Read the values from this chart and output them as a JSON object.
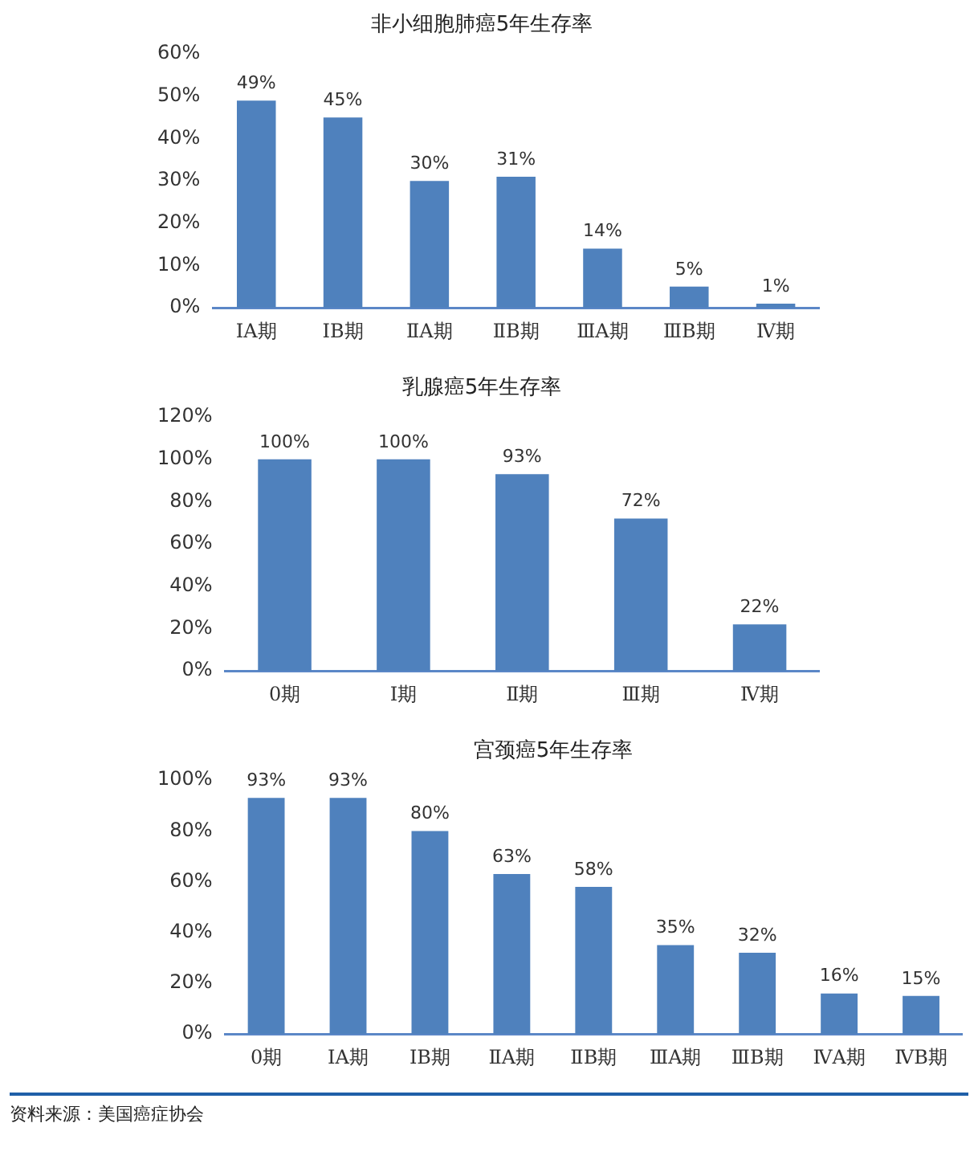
{
  "chart_data": [
    {
      "type": "bar",
      "title": "非小细胞肺癌5年生存率",
      "categories": [
        "ⅠA期",
        "ⅠB期",
        "ⅡA期",
        "ⅡB期",
        "ⅢA期",
        "ⅢB期",
        "Ⅳ期"
      ],
      "values": [
        49,
        45,
        30,
        31,
        14,
        5,
        1
      ],
      "value_labels": [
        "49%",
        "45%",
        "30%",
        "31%",
        "14%",
        "5%",
        "1%"
      ],
      "color": "#4f81bd",
      "ylim": [
        0,
        60
      ],
      "yticks": [
        {
          "value": 0,
          "label": "0%"
        },
        {
          "value": 10,
          "label": "10%"
        },
        {
          "value": 20,
          "label": "20%"
        },
        {
          "value": 30,
          "label": "30%"
        },
        {
          "value": 40,
          "label": "40%"
        },
        {
          "value": 50,
          "label": "50%"
        },
        {
          "value": 60,
          "label": "60%"
        }
      ],
      "grid": false,
      "legend": false
    },
    {
      "type": "bar",
      "title": "乳腺癌5年生存率",
      "categories": [
        "0期",
        "Ⅰ期",
        "Ⅱ期",
        "Ⅲ期",
        "Ⅳ期"
      ],
      "values": [
        100,
        100,
        93,
        72,
        22
      ],
      "value_labels": [
        "100%",
        "100%",
        "93%",
        "72%",
        "22%"
      ],
      "color": "#4f81bd",
      "ylim": [
        0,
        120
      ],
      "yticks": [
        {
          "value": 0,
          "label": "0%"
        },
        {
          "value": 20,
          "label": "20%"
        },
        {
          "value": 40,
          "label": "40%"
        },
        {
          "value": 60,
          "label": "60%"
        },
        {
          "value": 80,
          "label": "80%"
        },
        {
          "value": 100,
          "label": "100%"
        },
        {
          "value": 120,
          "label": "120%"
        }
      ],
      "grid": false,
      "legend": false
    },
    {
      "type": "bar",
      "title": "宫颈癌5年生存率",
      "categories": [
        "0期",
        "ⅠA期",
        "ⅠB期",
        "ⅡA期",
        "ⅡB期",
        "ⅢA期",
        "ⅢB期",
        "ⅣA期",
        "ⅣB期"
      ],
      "values": [
        93,
        93,
        80,
        63,
        58,
        35,
        32,
        16,
        15
      ],
      "value_labels": [
        "93%",
        "93%",
        "80%",
        "63%",
        "58%",
        "35%",
        "32%",
        "16%",
        "15%"
      ],
      "color": "#4f81bd",
      "ylim": [
        0,
        100
      ],
      "yticks": [
        {
          "value": 0,
          "label": "0%"
        },
        {
          "value": 20,
          "label": "20%"
        },
        {
          "value": 40,
          "label": "40%"
        },
        {
          "value": 60,
          "label": "60%"
        },
        {
          "value": 80,
          "label": "80%"
        },
        {
          "value": 100,
          "label": "100%"
        }
      ],
      "grid": false,
      "legend": false,
      "annotations": [
        "资料来源：美国癌症协会"
      ]
    }
  ]
}
